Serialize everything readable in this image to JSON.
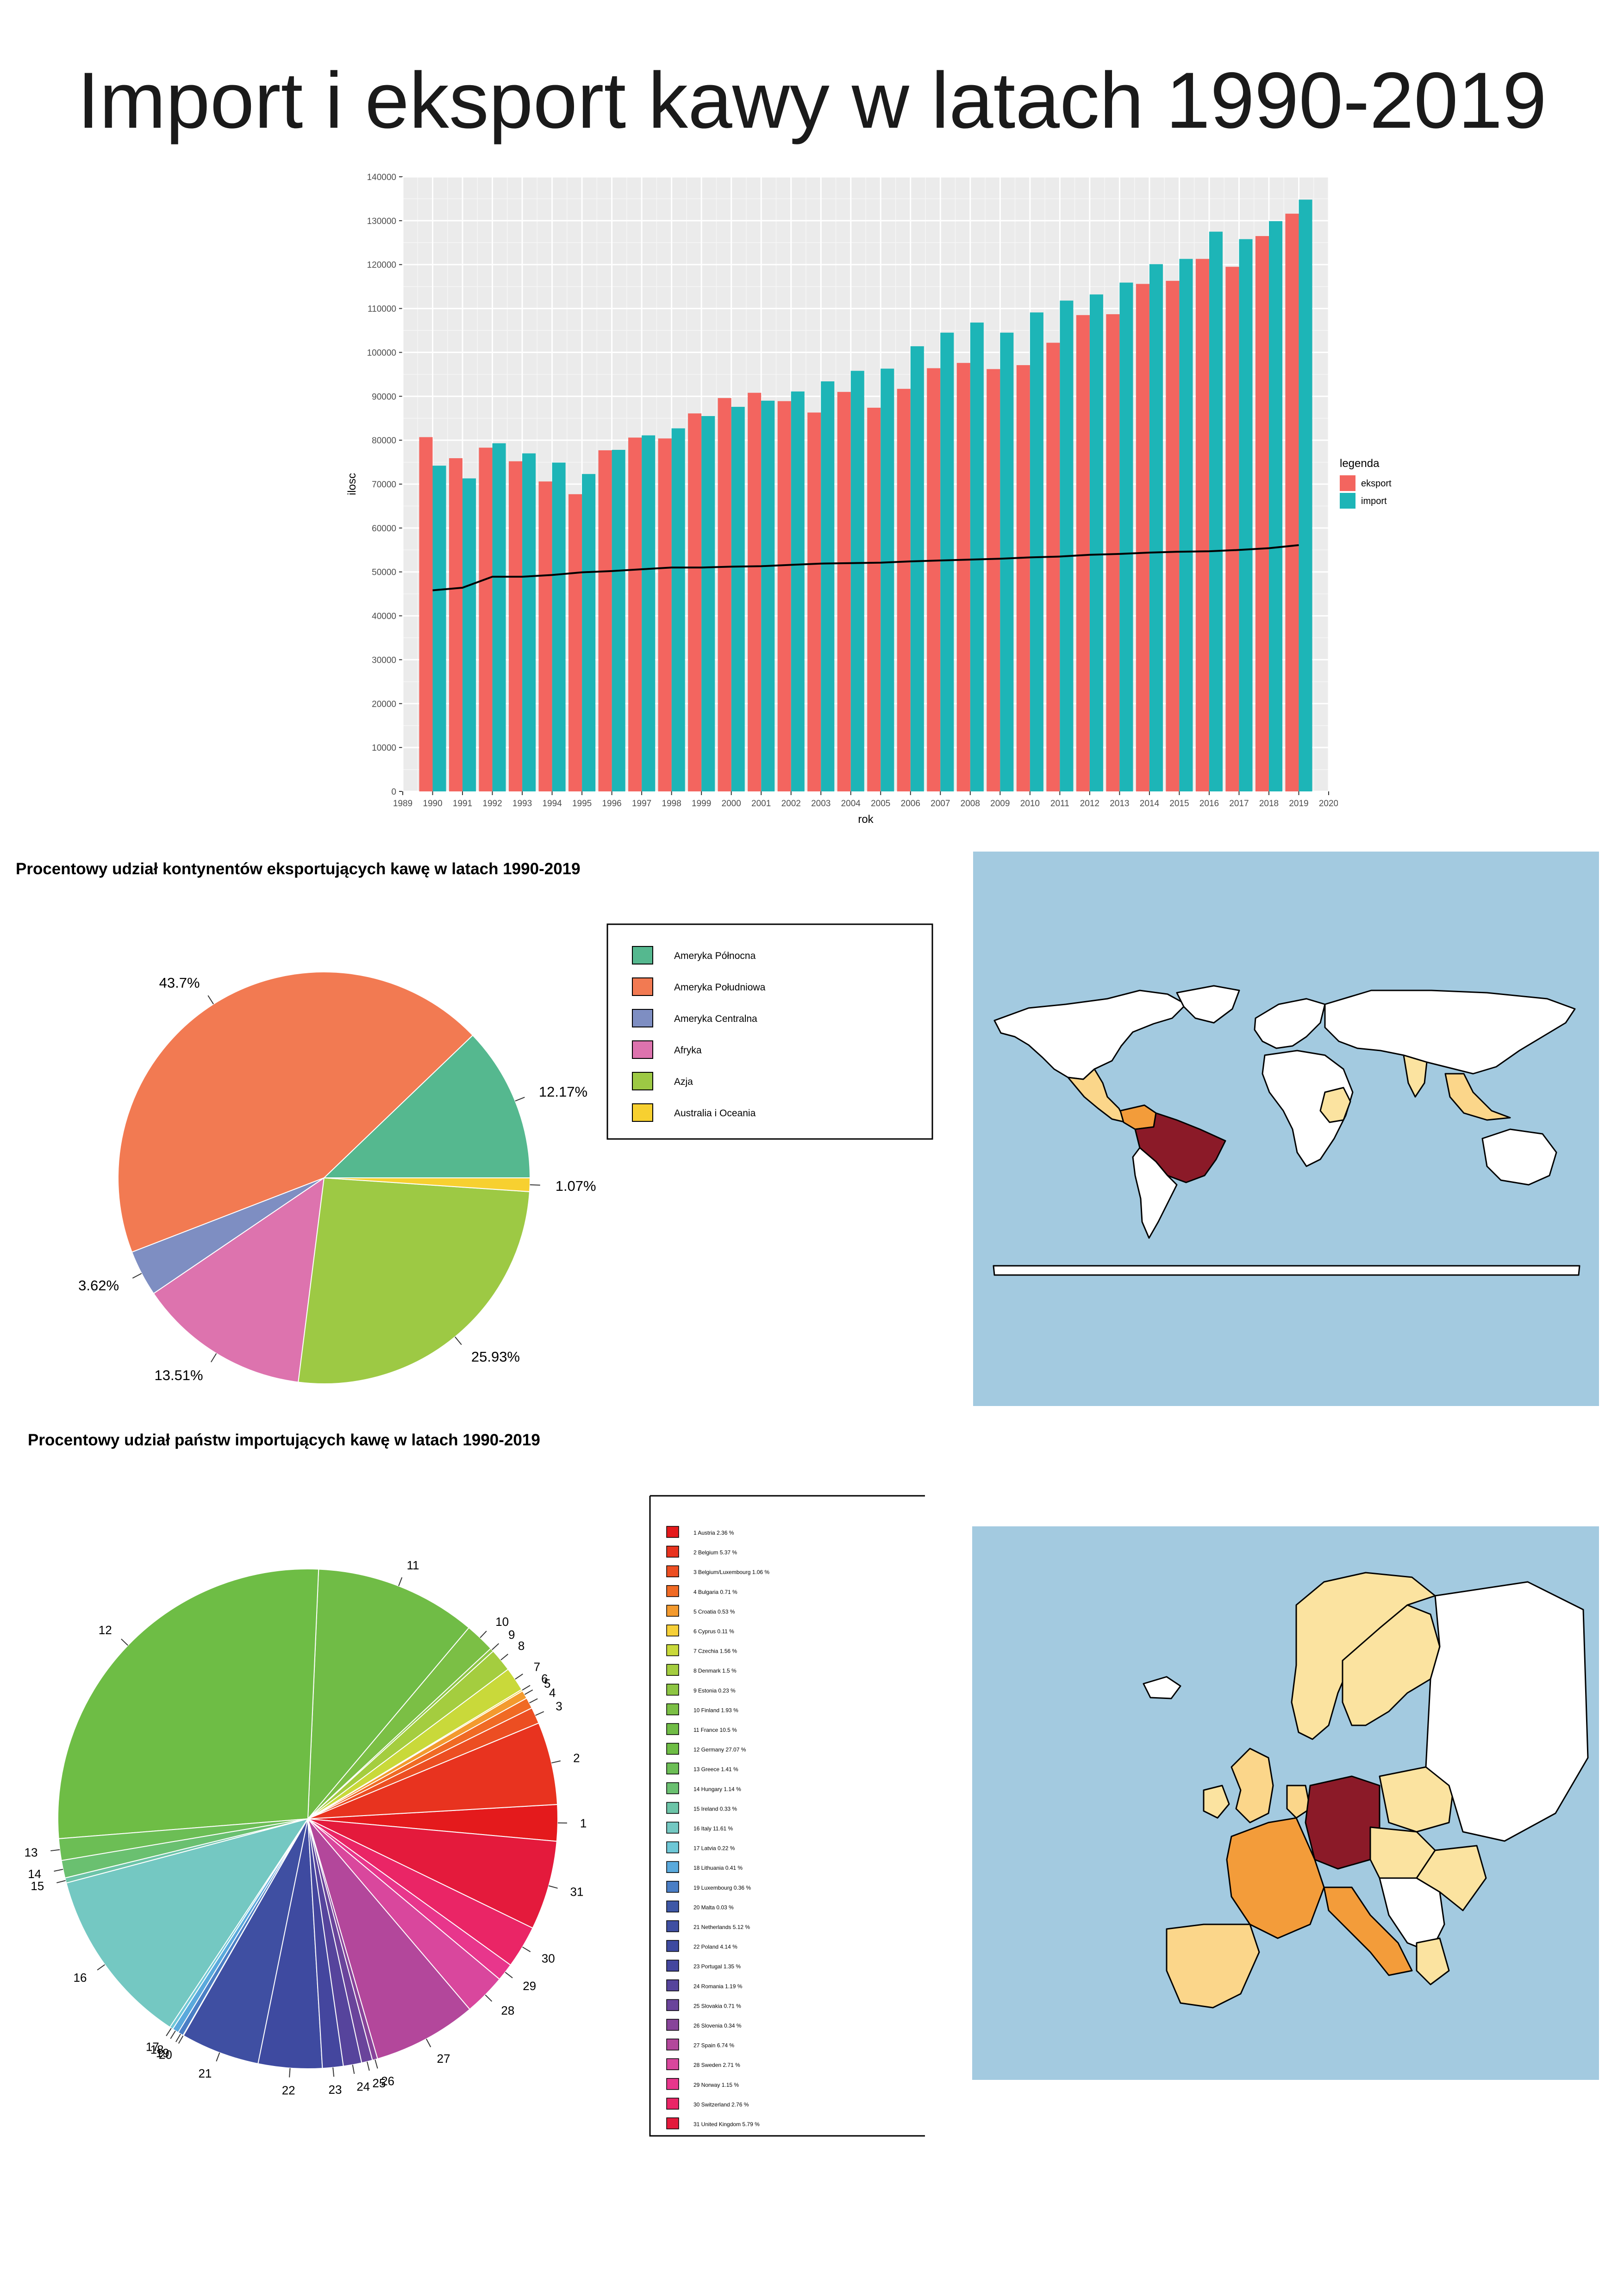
{
  "title": "Import i eksport kawy w latach 1990-2019",
  "colors": {
    "eksport": "#F3655F",
    "import": "#1DB5B7",
    "panel": "#EBEBEB",
    "grid": "#FFFFFF",
    "ocean": "#A3CAE0"
  },
  "chart_data": [
    {
      "type": "bar",
      "xlabel": "rok",
      "ylabel": "ilosc",
      "ylim": [
        0,
        140000
      ],
      "xlim": [
        1989,
        2020
      ],
      "yticks": [
        0,
        10000,
        20000,
        30000,
        40000,
        50000,
        60000,
        70000,
        80000,
        90000,
        100000,
        110000,
        120000,
        130000,
        140000
      ],
      "xticks": [
        1989,
        1990,
        1991,
        1992,
        1993,
        1994,
        1995,
        1996,
        1997,
        1998,
        1999,
        2000,
        2001,
        2002,
        2003,
        2004,
        2005,
        2006,
        2007,
        2008,
        2009,
        2010,
        2011,
        2012,
        2013,
        2014,
        2015,
        2016,
        2017,
        2018,
        2019,
        2020
      ],
      "grid": true,
      "legend": {
        "title": "legenda",
        "position": "right"
      },
      "categories": [
        1990,
        1991,
        1992,
        1993,
        1994,
        1995,
        1996,
        1997,
        1998,
        1999,
        2000,
        2001,
        2002,
        2003,
        2004,
        2005,
        2006,
        2007,
        2008,
        2009,
        2010,
        2011,
        2012,
        2013,
        2014,
        2015,
        2016,
        2017,
        2018,
        2019
      ],
      "series": [
        {
          "name": "eksport",
          "values": [
            80700,
            75900,
            78300,
            75200,
            70600,
            67700,
            77700,
            80600,
            80400,
            86100,
            89600,
            90800,
            88900,
            86300,
            91000,
            87400,
            91700,
            96400,
            97600,
            96200,
            97100,
            102200,
            108500,
            108700,
            115600,
            116300,
            121300,
            119500,
            126500,
            131600
          ]
        },
        {
          "name": "import",
          "values": [
            74200,
            71300,
            79300,
            77000,
            74900,
            72300,
            77800,
            81100,
            82700,
            85500,
            87600,
            89000,
            91100,
            93400,
            95800,
            96300,
            101400,
            104500,
            106800,
            104500,
            109100,
            111800,
            113200,
            115900,
            120100,
            121300,
            127500,
            125800,
            129900,
            134800
          ]
        }
      ],
      "trend_line": {
        "values": [
          45800,
          46400,
          48900,
          48900,
          49300,
          49900,
          50200,
          50600,
          51000,
          51000,
          51200,
          51300,
          51600,
          51900,
          52000,
          52100,
          52400,
          52600,
          52800,
          53000,
          53300,
          53500,
          53900,
          54100,
          54400,
          54600,
          54700,
          55000,
          55400,
          56100
        ]
      }
    },
    {
      "type": "pie",
      "title": "Procentowy udział kontynentów eksportujących kawę w latach 1990-2019",
      "labels": [
        "Ameryka Północna",
        "Ameryka Południowa",
        "Ameryka Centralna",
        "Afryka",
        "Azja",
        "Australia i Oceania"
      ],
      "values": [
        12.17,
        43.7,
        3.62,
        13.51,
        25.93,
        1.07
      ],
      "value_labels": [
        "12.17%",
        "43.7%",
        "3.62%",
        "13.51%",
        "25.93%",
        "1.07%"
      ],
      "colors": [
        "#55B88F",
        "#F27A52",
        "#7E8EC2",
        "#DD73AE",
        "#9DC944",
        "#F7D030"
      ],
      "legend": {
        "position": "right"
      }
    },
    {
      "type": "pie",
      "title": "Procentowy udział państw importujących kawę w latach 1990-2019",
      "legend": {
        "position": "right"
      },
      "slice_numbers": [
        "1",
        "2",
        "3",
        "4",
        "5",
        "6",
        "7",
        "8",
        "9",
        "10",
        "11",
        "12",
        "13",
        "14",
        "15",
        "16",
        "17",
        "18",
        "19",
        "20",
        "21",
        "22",
        "23",
        "24",
        "25",
        "26",
        "27",
        "28",
        "29",
        "30",
        "31"
      ],
      "labels": [
        "1    Austria 2.36 %",
        "2    Belgium 5.37 %",
        "3    Belgium/Luxembourg 1.06 %",
        "4    Bulgaria 0.71 %",
        "5    Croatia 0.53 %",
        "6    Cyprus 0.11 %",
        "7    Czechia 1.56 %",
        "8    Denmark 1.5 %",
        "9    Estonia 0.23 %",
        "10    Finland 1.93 %",
        "11    France 10.5 %",
        "12    Germany 27.07 %",
        "13    Greece 1.41 %",
        "14    Hungary 1.14 %",
        "15    Ireland 0.33 %",
        "16    Italy 11.61 %",
        "17    Latvia 0.22 %",
        "18    Lithuania 0.41 %",
        "19    Luxembourg 0.36 %",
        "20    Malta 0.03 %",
        "21    Netherlands 5.12 %",
        "22    Poland 4.14 %",
        "23    Portugal 1.35 %",
        "24    Romania 1.19 %",
        "25    Slovakia 0.71 %",
        "26    Slovenia 0.34 %",
        "27    Spain 6.74 %",
        "28    Sweden 2.71 %",
        "29 Norway 1.15 %",
        "30 Switzerland 2.76 %",
        "31 United Kingdom 5.79 %"
      ],
      "values": [
        2.36,
        5.37,
        1.06,
        0.71,
        0.53,
        0.11,
        1.56,
        1.5,
        0.23,
        1.93,
        10.5,
        27.07,
        1.41,
        1.14,
        0.33,
        11.61,
        0.22,
        0.41,
        0.36,
        0.03,
        5.12,
        4.14,
        1.35,
        1.19,
        0.71,
        0.34,
        6.74,
        2.71,
        1.15,
        2.76,
        5.79
      ],
      "colors": [
        "#E41A1C",
        "#E8331F",
        "#EC4E22",
        "#F06A24",
        "#F39A2E",
        "#F6D038",
        "#C9D93A",
        "#A4CD3F",
        "#8DC543",
        "#7BBF45",
        "#70BC46",
        "#6EBD45",
        "#6CBE55",
        "#6AC070",
        "#6CC4A8",
        "#74C8C2",
        "#6EC7D6",
        "#5AA9DC",
        "#4A7EC5",
        "#3E57A6",
        "#3F4FA2",
        "#3E4AA0",
        "#44469E",
        "#56449C",
        "#6A449B",
        "#88449A",
        "#B3479B",
        "#D9479D",
        "#E8368C",
        "#EA2566",
        "#E41A3C"
      ]
    }
  ],
  "legend_box_1": {
    "items": [
      "Ameryka Północna",
      "Ameryka Południowa",
      "Ameryka Centralna",
      "Afryka",
      "Azja",
      "Australia i Oceania"
    ]
  }
}
